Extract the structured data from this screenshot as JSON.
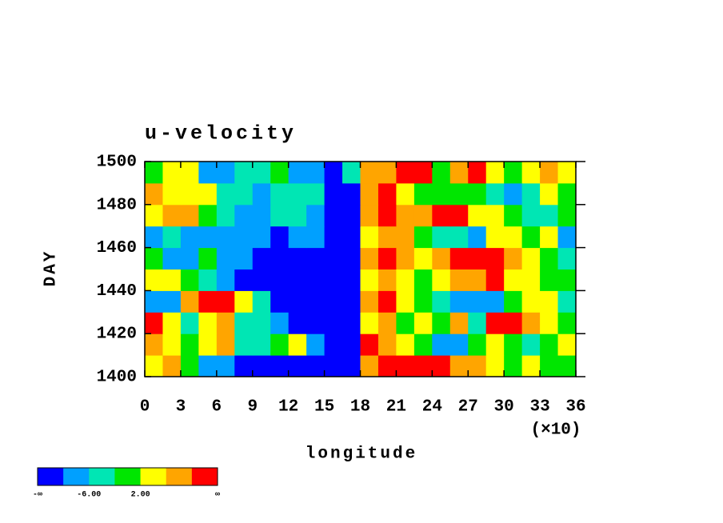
{
  "chart_data": {
    "type": "heatmap",
    "title": "u-velocity",
    "x_label": "longitude",
    "y_label": "DAY",
    "x_multiplier": "(×10)",
    "xlim": [
      0,
      36
    ],
    "xticks": [
      0,
      3,
      6,
      9,
      12,
      15,
      18,
      21,
      24,
      27,
      30,
      33,
      36
    ],
    "ylim": [
      1400,
      1500
    ],
    "yticks": [
      1400,
      1420,
      1440,
      1460,
      1480,
      1500
    ],
    "xbins": [
      0,
      1.5,
      3,
      4.5,
      6,
      7.5,
      9,
      10.5,
      12,
      13.5,
      15,
      16.5,
      18,
      19.5,
      21,
      22.5,
      24,
      25.5,
      27,
      28.5,
      30,
      31.5,
      33,
      34.5,
      36
    ],
    "ybins": [
      1400,
      1410,
      1420,
      1430,
      1440,
      1450,
      1460,
      1470,
      1480,
      1490,
      1500
    ],
    "z": [
      [
        4,
        8,
        0,
        -8,
        -8,
        -12,
        -12,
        -12,
        -12,
        -12,
        -12,
        -12,
        8,
        12,
        12,
        12,
        12,
        8,
        8,
        4,
        0,
        4,
        0,
        0
      ],
      [
        8,
        4,
        0,
        4,
        8,
        -4,
        -4,
        0,
        4,
        -8,
        -12,
        -12,
        12,
        8,
        4,
        0,
        -8,
        -8,
        0,
        4,
        0,
        -4,
        0,
        4
      ],
      [
        12,
        4,
        -4,
        4,
        8,
        -4,
        -4,
        -8,
        -12,
        -12,
        -12,
        -12,
        4,
        8,
        0,
        4,
        0,
        8,
        -4,
        12,
        12,
        8,
        4,
        0
      ],
      [
        -8,
        -8,
        8,
        12,
        12,
        4,
        -4,
        -12,
        -12,
        -12,
        -12,
        -12,
        8,
        12,
        4,
        0,
        -4,
        -8,
        -8,
        -8,
        0,
        4,
        4,
        -4
      ],
      [
        4,
        4,
        0,
        -4,
        -8,
        -12,
        -12,
        -12,
        -12,
        -12,
        -12,
        -12,
        4,
        8,
        4,
        0,
        4,
        8,
        8,
        12,
        4,
        4,
        0,
        0
      ],
      [
        0,
        -8,
        -8,
        0,
        -8,
        -8,
        -12,
        -12,
        -12,
        -12,
        -12,
        -12,
        8,
        12,
        8,
        4,
        8,
        12,
        12,
        12,
        8,
        4,
        0,
        -4
      ],
      [
        -8,
        -4,
        -8,
        -8,
        -8,
        -8,
        -8,
        -12,
        -8,
        -8,
        -12,
        -12,
        4,
        8,
        8,
        0,
        -4,
        -4,
        -8,
        4,
        4,
        0,
        4,
        -8
      ],
      [
        4,
        8,
        8,
        0,
        -4,
        -8,
        -8,
        -4,
        -4,
        -8,
        -12,
        -12,
        8,
        12,
        8,
        8,
        12,
        12,
        4,
        4,
        0,
        -4,
        -4,
        0
      ],
      [
        8,
        4,
        4,
        4,
        -4,
        -4,
        -8,
        -4,
        -4,
        -4,
        -12,
        -12,
        8,
        12,
        4,
        0,
        0,
        0,
        0,
        -4,
        -8,
        -4,
        4,
        0
      ],
      [
        0,
        4,
        4,
        -8,
        -8,
        -4,
        -4,
        0,
        -8,
        -8,
        -12,
        -4,
        8,
        8,
        12,
        12,
        0,
        8,
        12,
        4,
        0,
        4,
        8,
        4
      ]
    ],
    "levels": [
      -10,
      -6,
      -2,
      2,
      6,
      10
    ],
    "colors": [
      "#0000ff",
      "#00a0ff",
      "#00e6b4",
      "#00e600",
      "#ffff00",
      "#ffa500",
      "#ff0000"
    ],
    "colorbar_labels": [
      "-∞",
      {
        "value": -6,
        "label": "-6.00"
      },
      {
        "value": 2,
        "label": "2.00"
      },
      "∞"
    ]
  }
}
